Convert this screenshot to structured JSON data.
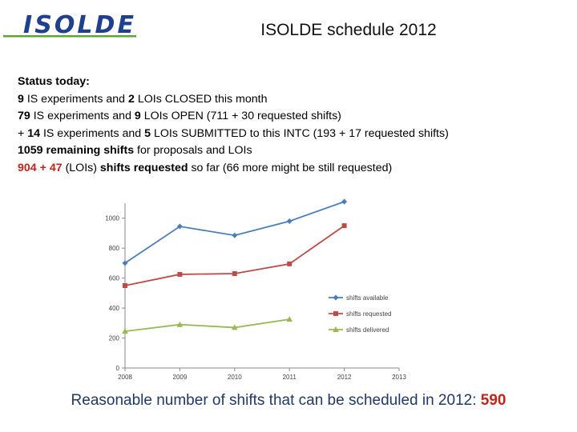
{
  "slide_title": "ISOLDE schedule 2012",
  "logo": {
    "text": "ISOLDE",
    "color_primary": "#1f3f8f",
    "color_accent": "#5aa832"
  },
  "status": {
    "heading": "Status today:",
    "line1": {
      "n1": "9",
      "t1": " IS experiments and ",
      "n2": "2",
      "t2": " LOIs CLOSED this month"
    },
    "line2": {
      "n1": "79",
      "t1": " IS experiments and ",
      "n2": "9",
      "t2": " LOIs OPEN (711 + 30 requested shifts)"
    },
    "line3": {
      "t0": "+ ",
      "n1": "14",
      "t1": " IS experiments and ",
      "n2": "5",
      "t2": " LOIs SUBMITTED to this INTC (193 + 17 requested shifts)"
    },
    "line4": {
      "b1": "1059 remaining shifts",
      "t1": " for proposals and LOIs"
    },
    "line5": {
      "r1": "904 + 47",
      "t1": " (LOIs) ",
      "b1": "shifts requested",
      "t2": " so far (66 more might be still requested)"
    }
  },
  "footer": {
    "text": "Reasonable number of shifts that can be scheduled in 2012: ",
    "value": "590"
  },
  "chart_data": {
    "type": "line",
    "x": [
      2008,
      2009,
      2010,
      2011,
      2012,
      2013
    ],
    "x_ticks": [
      "2008",
      "2009",
      "2010",
      "2011",
      "2012",
      "2013"
    ],
    "y_ticks": [
      "0",
      "200",
      "400",
      "600",
      "800",
      "1000"
    ],
    "xlim": [
      2008,
      2013
    ],
    "ylim": [
      0,
      1100
    ],
    "grid": false,
    "legend_position": "right",
    "series": [
      {
        "name": "shifts available",
        "color": "#4a7ebb",
        "marker": "diamond",
        "points": [
          [
            2008,
            700
          ],
          [
            2009,
            945
          ],
          [
            2010,
            885
          ],
          [
            2011,
            980
          ],
          [
            2012,
            1110
          ]
        ]
      },
      {
        "name": "shifts requested",
        "color": "#be4b48",
        "marker": "square",
        "points": [
          [
            2008,
            550
          ],
          [
            2009,
            625
          ],
          [
            2010,
            630
          ],
          [
            2011,
            695
          ],
          [
            2012,
            950
          ]
        ]
      },
      {
        "name": "shifts delivered",
        "color": "#98b954",
        "marker": "triangle",
        "points": [
          [
            2008,
            245
          ],
          [
            2009,
            290
          ],
          [
            2010,
            270
          ],
          [
            2011,
            325
          ]
        ]
      }
    ]
  }
}
